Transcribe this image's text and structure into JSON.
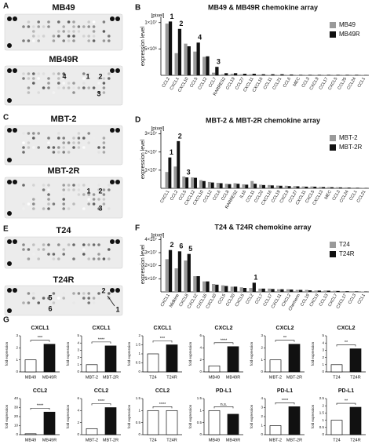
{
  "panel_letters": [
    "A",
    "B",
    "C",
    "D",
    "E",
    "F",
    "G"
  ],
  "blots": [
    {
      "title": "MB49",
      "title2": "MB49R",
      "spots": [
        "4",
        "1",
        "2",
        "3"
      ]
    },
    {
      "title": "MBT-2",
      "title2": "MBT-2R",
      "spots": [
        "1",
        "2",
        "3"
      ]
    },
    {
      "title": "T24",
      "title2": "T24R",
      "spots": [
        "2",
        "1",
        "5",
        "6"
      ]
    }
  ],
  "chart_data": [
    {
      "type": "bar",
      "title": "MB49 & MB49R chemokine array",
      "unit": "[pixel]",
      "y_label": "expression level",
      "categories": [
        "CCL2",
        "CXCL1",
        "CXCL10",
        "CCL5",
        "CCL12",
        "CCL7",
        "RARRES2",
        "CCL19",
        "CCL27",
        "CXCL11",
        "CXCL16",
        "CCL11",
        "CCL21",
        "CCL6",
        "MEC",
        "CCL3",
        "CXCL9",
        "CCL17",
        "CXCL5",
        "CCL25",
        "CCL24",
        "CCL1"
      ],
      "series": [
        {
          "name": "MB49",
          "color": "#9a9a9a",
          "values": [
            9800000,
            4200000,
            6000000,
            4500000,
            3500000,
            500000,
            200000,
            300000,
            200000,
            200000,
            150000,
            100000,
            100000,
            100000,
            100000,
            100000,
            100000,
            100000,
            100000,
            100000,
            100000,
            50000
          ]
        },
        {
          "name": "MB49R",
          "color": "#111111",
          "values": [
            10200000,
            8800000,
            5500000,
            6200000,
            3600000,
            1600000,
            400000,
            400000,
            300000,
            300000,
            200000,
            200000,
            200000,
            150000,
            100000,
            100000,
            100000,
            100000,
            100000,
            100000,
            100000,
            50000
          ]
        }
      ],
      "ylim": [
        0,
        11000000
      ],
      "yticks": [
        {
          "value": 5000000,
          "label": "5×10⁶"
        },
        {
          "value": 10000000,
          "label": "1×10⁷"
        }
      ],
      "annotations": [
        "1",
        "2",
        "4",
        "3"
      ]
    },
    {
      "type": "bar",
      "title": "MBT-2 & MBT-2R chemokine array",
      "unit": "[pixel]",
      "y_label": "expression level",
      "categories": [
        "CXCL1",
        "CCL2",
        "CCL5",
        "CXCL12",
        "CXCL10",
        "CCL12",
        "CCL6",
        "CCL8",
        "RARRES2",
        "IL16",
        "CCL11",
        "CCL22",
        "CXCL16",
        "CCL19",
        "CXCL9",
        "CCL27",
        "CXCL11",
        "CXCL5",
        "CXCL13",
        "MEC",
        "CCL3",
        "CCL24",
        "CCL1",
        "CCL21"
      ],
      "series": [
        {
          "name": "MBT-2",
          "color": "#9a9a9a",
          "values": [
            9000000,
            12000000,
            6500000,
            6000000,
            4500000,
            3500000,
            3000000,
            2500000,
            2800000,
            2200000,
            4000000,
            2000000,
            1800000,
            1500000,
            1400000,
            1200000,
            1000000,
            1000000,
            800000,
            700000,
            600000,
            500000,
            400000,
            300000
          ]
        },
        {
          "name": "MBT-2R",
          "color": "#111111",
          "values": [
            17000000,
            26000000,
            6000000,
            5800000,
            4000000,
            3200000,
            2800000,
            2300000,
            2500000,
            2000000,
            2500000,
            1800000,
            1600000,
            1400000,
            1200000,
            1100000,
            900000,
            900000,
            700000,
            600000,
            500000,
            400000,
            300000,
            200000
          ]
        }
      ],
      "ylim": [
        0,
        32000000
      ],
      "yticks": [
        {
          "value": 10000000,
          "label": "1×10⁷"
        },
        {
          "value": 20000000,
          "label": "2×10⁷"
        },
        {
          "value": 30000000,
          "label": "3×10⁷"
        }
      ],
      "annotations": [
        "1",
        "2",
        "3"
      ]
    },
    {
      "type": "bar",
      "title": "T24 & T24R chemokine array",
      "unit": "[pixel]",
      "y_label": "expression level",
      "categories": [
        "CXCL1",
        "Midkine",
        "CXCL8",
        "CXCL12",
        "CXCL16",
        "CXCL10",
        "CCL5",
        "CCL20",
        "CXCL5",
        "CCL2",
        "CCL7",
        "CCL17",
        "CXCL11",
        "CXCL2",
        "Chemerin",
        "CCL19",
        "CXCL9",
        "CCL13",
        "CXCL7",
        "CXCL17",
        "CCL3",
        "CCL1"
      ],
      "series": [
        {
          "name": "T24",
          "color": "#9a9a9a",
          "values": [
            25000000,
            18000000,
            24000000,
            12000000,
            8000000,
            6000000,
            5000000,
            4000000,
            3500000,
            3000000,
            2500000,
            2500000,
            2000000,
            2000000,
            1500000,
            1500000,
            1000000,
            1000000,
            800000,
            600000,
            500000,
            300000
          ]
        },
        {
          "name": "T24R",
          "color": "#111111",
          "values": [
            32000000,
            31000000,
            29000000,
            12000000,
            8000000,
            5500000,
            4500000,
            4000000,
            3000000,
            7000000,
            2500000,
            2200000,
            2000000,
            1800000,
            1500000,
            1200000,
            1000000,
            900000,
            700000,
            500000,
            400000,
            300000
          ]
        }
      ],
      "ylim": [
        0,
        42000000
      ],
      "yticks": [
        {
          "value": 10000000,
          "label": "1×10⁷"
        },
        {
          "value": 20000000,
          "label": "2×10⁷"
        },
        {
          "value": 30000000,
          "label": "3×10⁷"
        },
        {
          "value": 40000000,
          "label": "4×10⁷"
        }
      ],
      "annotations": [
        "2",
        "6",
        "5",
        "1"
      ]
    },
    {
      "type": "pair",
      "title": "CXCL1",
      "y_label": "fold expression",
      "categories": [
        "MB49",
        "MB49R"
      ],
      "values": [
        1,
        2.3
      ],
      "colors": [
        "#ffffff",
        "#111111"
      ],
      "ylim": [
        0,
        3
      ],
      "yticks": [
        0,
        1,
        2,
        3
      ],
      "significance": "***"
    },
    {
      "type": "pair",
      "title": "CXCL1",
      "y_label": "fold expression",
      "categories": [
        "MBT-2",
        "MBT-2R"
      ],
      "values": [
        1,
        3.6
      ],
      "colors": [
        "#ffffff",
        "#111111"
      ],
      "ylim": [
        0,
        5
      ],
      "yticks": [
        0,
        1,
        2,
        3,
        4,
        5
      ],
      "significance": "****"
    },
    {
      "type": "pair",
      "title": "CXCL1",
      "y_label": "fold expression",
      "categories": [
        "T24",
        "T24R"
      ],
      "values": [
        1,
        1.5
      ],
      "colors": [
        "#ffffff",
        "#111111"
      ],
      "ylim": [
        0,
        2
      ],
      "yticks": [
        0,
        0.5,
        1,
        1.5,
        2
      ],
      "significance": "***"
    },
    {
      "type": "pair",
      "title": "CXCL2",
      "y_label": "fold expression",
      "categories": [
        "MB49",
        "MB49R"
      ],
      "values": [
        1,
        4.2
      ],
      "colors": [
        "#ffffff",
        "#111111"
      ],
      "ylim": [
        0,
        6
      ],
      "yticks": [
        0,
        2,
        4,
        6
      ],
      "significance": "****"
    },
    {
      "type": "pair",
      "title": "CXCL2",
      "y_label": "fold expression",
      "categories": [
        "MBT-2",
        "MBT-2R"
      ],
      "values": [
        1,
        2.3
      ],
      "colors": [
        "#ffffff",
        "#111111"
      ],
      "ylim": [
        0,
        3
      ],
      "yticks": [
        0,
        1,
        2,
        3
      ],
      "significance": "**"
    },
    {
      "type": "pair",
      "title": "CXCL2",
      "y_label": "fold expression",
      "categories": [
        "T24",
        "T24R"
      ],
      "values": [
        1,
        3.2
      ],
      "colors": [
        "#ffffff",
        "#111111"
      ],
      "ylim": [
        0,
        5
      ],
      "yticks": [
        0,
        1,
        2,
        3,
        4,
        5
      ],
      "significance": "**"
    },
    {
      "type": "pair",
      "title": "CCL2",
      "y_label": "fold expression",
      "categories": [
        "MB49",
        "MB49R"
      ],
      "values": [
        1,
        25
      ],
      "colors": [
        "#ffffff",
        "#111111"
      ],
      "ylim": [
        0,
        40
      ],
      "yticks": [
        0,
        10,
        20,
        30,
        40
      ],
      "significance": "****"
    },
    {
      "type": "pair",
      "title": "CCL2",
      "y_label": "fold expression",
      "categories": [
        "MBT-2",
        "MBT-2R"
      ],
      "values": [
        1,
        4.5
      ],
      "colors": [
        "#ffffff",
        "#111111"
      ],
      "ylim": [
        0,
        6
      ],
      "yticks": [
        0,
        2,
        4,
        6
      ],
      "significance": "****"
    },
    {
      "type": "pair",
      "title": "CCL2",
      "y_label": "fold expression",
      "categories": [
        "T24",
        "T24R"
      ],
      "values": [
        1,
        1
      ],
      "colors": [
        "#ffffff",
        "#ffffff"
      ],
      "ylim": [
        0,
        1.5
      ],
      "yticks": [
        0,
        0.5,
        1,
        1.5
      ],
      "significance": "****"
    },
    {
      "type": "pair",
      "title": "PD-L1",
      "y_label": "fold expression",
      "categories": [
        "MB49",
        "MB49R"
      ],
      "values": [
        1,
        0.85
      ],
      "colors": [
        "#ffffff",
        "#111111"
      ],
      "ylim": [
        0,
        1.5
      ],
      "yticks": [
        0,
        0.5,
        1,
        1.5
      ],
      "significance": "n.s."
    },
    {
      "type": "pair",
      "title": "PD-L1",
      "y_label": "fold expression",
      "categories": [
        "MBT-2",
        "MBT-2R"
      ],
      "values": [
        1,
        3.1
      ],
      "colors": [
        "#ffffff",
        "#111111"
      ],
      "ylim": [
        0,
        4
      ],
      "yticks": [
        0,
        1,
        2,
        3,
        4
      ],
      "significance": "****"
    },
    {
      "type": "pair",
      "title": "PD-L1",
      "y_label": "fold expression",
      "categories": [
        "T24",
        "T24R"
      ],
      "values": [
        1,
        1.9
      ],
      "colors": [
        "#ffffff",
        "#111111"
      ],
      "ylim": [
        0,
        2.5
      ],
      "yticks": [
        0,
        0.5,
        1,
        1.5,
        2,
        2.5
      ],
      "significance": "**"
    }
  ]
}
